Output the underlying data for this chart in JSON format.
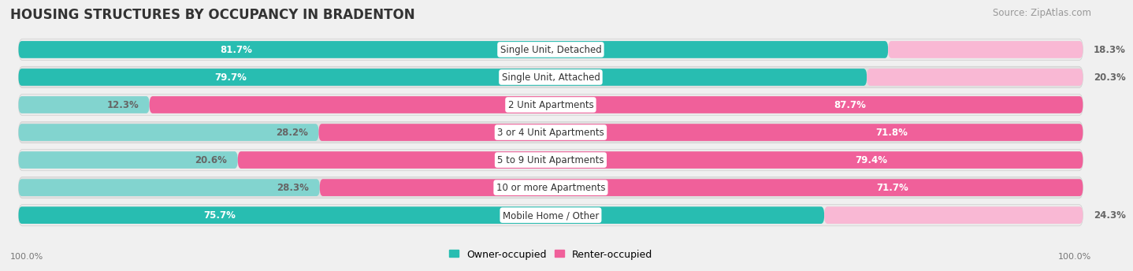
{
  "title": "HOUSING STRUCTURES BY OCCUPANCY IN BRADENTON",
  "source": "Source: ZipAtlas.com",
  "categories": [
    "Single Unit, Detached",
    "Single Unit, Attached",
    "2 Unit Apartments",
    "3 or 4 Unit Apartments",
    "5 to 9 Unit Apartments",
    "10 or more Apartments",
    "Mobile Home / Other"
  ],
  "owner_pct": [
    81.7,
    79.7,
    12.3,
    28.2,
    20.6,
    28.3,
    75.7
  ],
  "renter_pct": [
    18.3,
    20.3,
    87.7,
    71.8,
    79.4,
    71.7,
    24.3
  ],
  "owner_color_dark": "#28bdb1",
  "owner_color_light": "#82d4cf",
  "renter_color_dark": "#f0609a",
  "renter_color_light": "#f9b8d4",
  "row_bg_even": "#f4f4f4",
  "row_bg_odd": "#e8e8e8",
  "bg_color": "#f0f0f0",
  "left_axis_label": "100.0%",
  "right_axis_label": "100.0%",
  "legend_owner": "Owner-occupied",
  "legend_renter": "Renter-occupied",
  "title_fontsize": 12,
  "source_fontsize": 8.5,
  "label_fontsize": 8.5,
  "cat_fontsize": 8.5
}
